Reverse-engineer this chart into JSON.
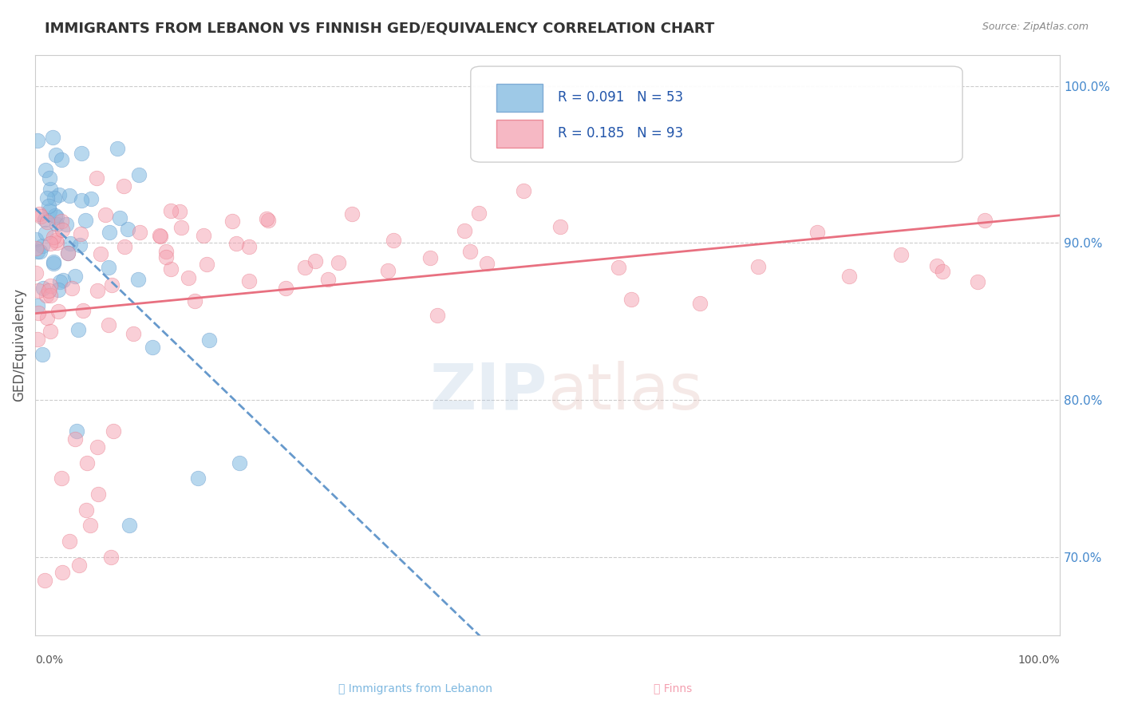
{
  "title": "IMMIGRANTS FROM LEBANON VS FINNISH GED/EQUIVALENCY CORRELATION CHART",
  "source_text": "Source: ZipAtlas.com",
  "ylabel": "GED/Equivalency",
  "right_yticks": [
    70.0,
    80.0,
    90.0,
    100.0
  ],
  "legend_entries": [
    {
      "label": "Immigrants from Lebanon",
      "R": 0.091,
      "N": 53,
      "color": "#a8c8e8"
    },
    {
      "label": "Finns",
      "R": 0.185,
      "N": 93,
      "color": "#f4a0b0"
    }
  ],
  "blue_line_color": "#6699cc",
  "pink_line_color": "#e87080",
  "blue_scatter_color": "#7eb8e0",
  "pink_scatter_color": "#f4a0b0",
  "background_color": "#ffffff",
  "grid_color": "#cccccc",
  "title_color": "#333333",
  "xlim": [
    0,
    100
  ],
  "ylim": [
    65,
    102
  ]
}
